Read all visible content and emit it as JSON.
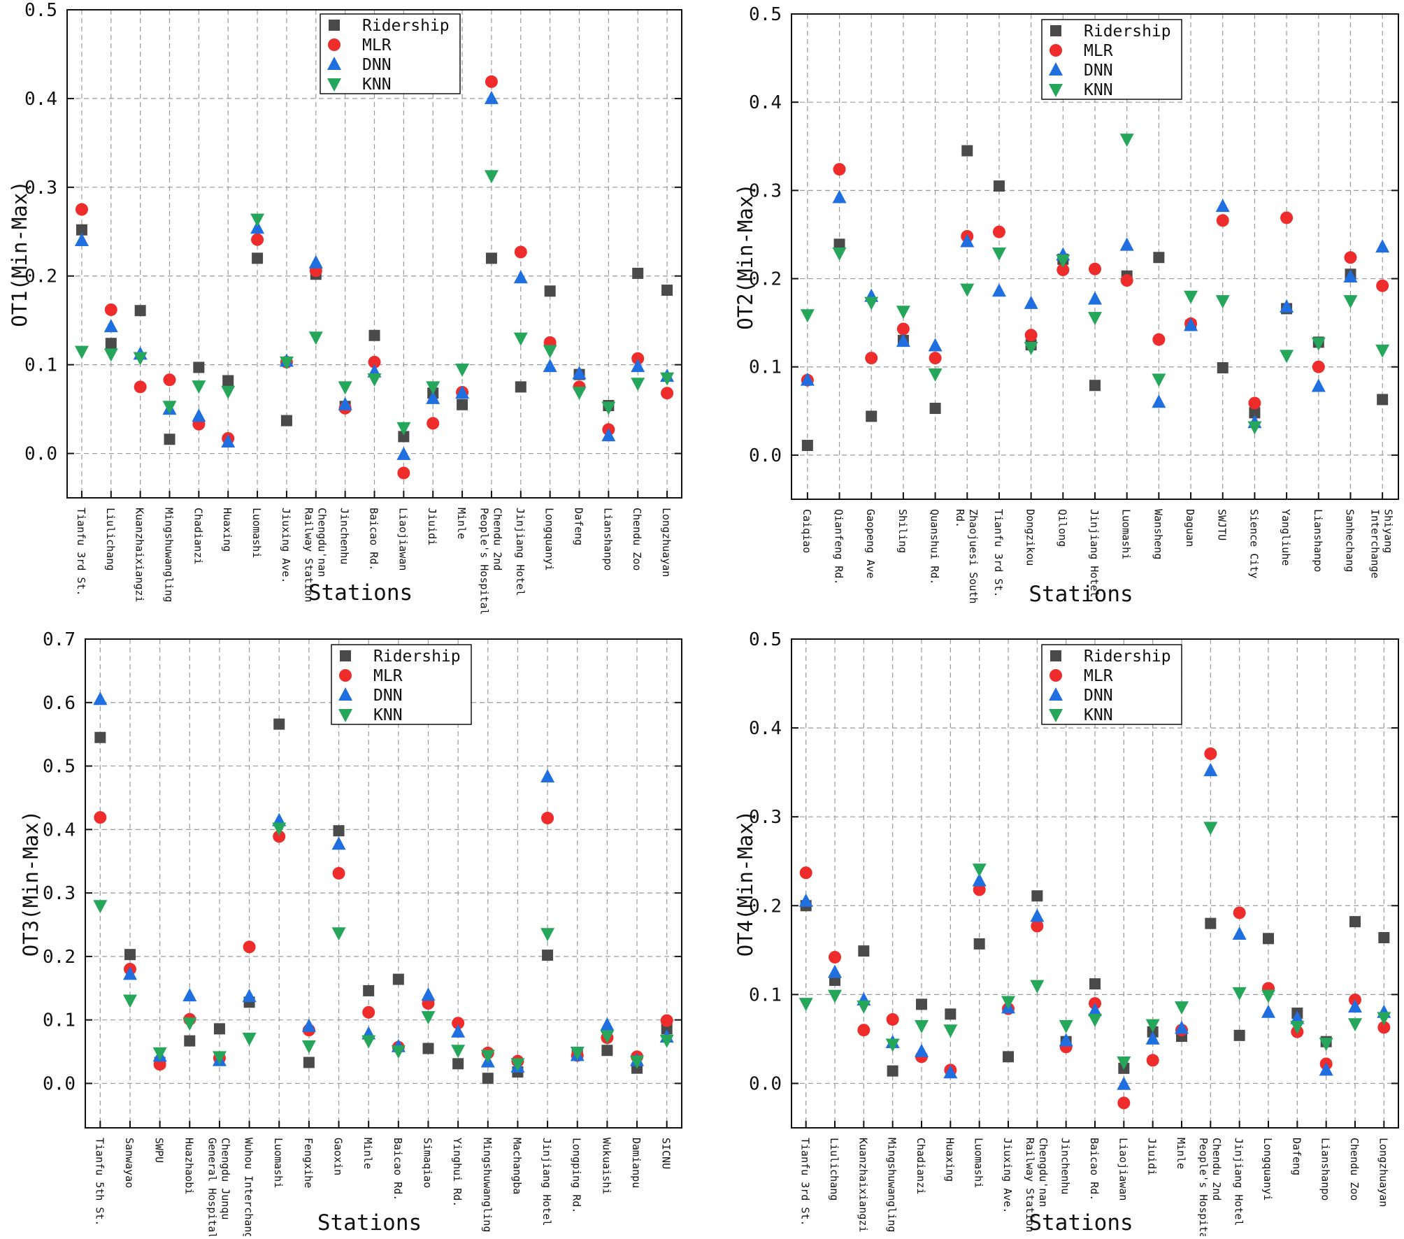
{
  "colors": {
    "ridership": "#4a4a4a",
    "mlr": "#ee2c2c",
    "dnn": "#1f6fe0",
    "knn": "#26a65b"
  },
  "chart_data": [
    {
      "type": "scatter",
      "ylabel": "OT1(Min-Max)",
      "xlabel": "Stations",
      "ylim": [
        -0.05,
        0.5
      ],
      "yticks": [
        "0.0",
        "0.1",
        "0.2",
        "0.3",
        "0.4",
        "0.5"
      ],
      "legend": [
        "Ridership",
        "MLR",
        "DNN",
        "KNN"
      ],
      "categories": [
        "Tianfu 3rd St.",
        "Liulichang",
        "Kuanzhaixiangzi",
        "Mingshuwangling",
        "Chadianzi",
        "Huaxing",
        "Luomashi",
        "Jiuxing Ave.",
        "Chengdu'nan|Railway Station",
        "Jinchenhu",
        "Baicao Rd.",
        "Liaojiawan",
        "Jiuidi",
        "Minle",
        "Chendu 2nd|People's Hospital",
        "Jinjiang Hotel",
        "Longquanyi",
        "Dafeng",
        "Lianshanpo",
        "Chendu Zoo",
        "Longzhuayan"
      ],
      "series": [
        {
          "name": "Ridership",
          "values": [
            0.252,
            0.124,
            0.161,
            0.016,
            0.097,
            0.082,
            0.22,
            0.037,
            0.202,
            0.053,
            0.133,
            0.019,
            0.068,
            0.055,
            0.22,
            0.075,
            0.183,
            0.089,
            0.054,
            0.203,
            0.184
          ]
        },
        {
          "name": "MLR",
          "values": [
            0.275,
            0.162,
            0.075,
            0.083,
            0.033,
            0.017,
            0.241,
            0.103,
            0.206,
            0.051,
            0.103,
            -0.022,
            0.034,
            0.069,
            0.419,
            0.227,
            0.125,
            0.075,
            0.027,
            0.107,
            0.068
          ]
        },
        {
          "name": "DNN",
          "values": [
            0.24,
            0.143,
            0.112,
            0.05,
            0.042,
            0.013,
            0.254,
            0.104,
            0.215,
            0.055,
            0.092,
            -0.001,
            0.062,
            0.068,
            0.4,
            0.198,
            0.098,
            0.09,
            0.02,
            0.098,
            0.087
          ]
        },
        {
          "name": "KNN",
          "values": [
            0.115,
            0.112,
            0.108,
            0.053,
            0.076,
            0.07,
            0.264,
            0.103,
            0.131,
            0.075,
            0.084,
            0.029,
            0.075,
            0.095,
            0.313,
            0.13,
            0.116,
            0.069,
            0.052,
            0.079,
            0.085
          ]
        }
      ]
    },
    {
      "type": "scatter",
      "ylabel": "OT2(Min-Max)",
      "xlabel": "Stations",
      "ylim": [
        -0.05,
        0.5
      ],
      "yticks": [
        "0.0",
        "0.1",
        "0.2",
        "0.3",
        "0.4",
        "0.5"
      ],
      "legend": [
        "Ridership",
        "MLR",
        "DNN",
        "KNN"
      ],
      "categories": [
        "Caiqiao",
        "Qianfeng Rd.",
        "Gaopeng Ave",
        "Shiling",
        "Quanshui Rd.",
        "Zhaojuesi South|Rd.",
        "Tianfu 3rd St.",
        "Dongzikou",
        "Qilong",
        "Jinjiang Hotel",
        "Luomashi",
        "Wansheng",
        "Daguan",
        "SWJTU",
        "Sience City",
        "Yangliuhe",
        "Lianshanpo",
        "Sanhechang",
        "Shiyang|Interchange"
      ],
      "series": [
        {
          "name": "Ridership",
          "values": [
            0.011,
            0.239,
            0.044,
            0.13,
            0.053,
            0.345,
            0.305,
            0.125,
            0.222,
            0.079,
            0.203,
            0.224,
            0.147,
            0.099,
            0.048,
            0.166,
            0.128,
            0.205,
            0.063
          ]
        },
        {
          "name": "MLR",
          "values": [
            0.085,
            0.324,
            0.11,
            0.143,
            0.11,
            0.248,
            0.253,
            0.136,
            0.21,
            0.211,
            0.198,
            0.131,
            0.149,
            0.266,
            0.059,
            0.269,
            0.1,
            0.224,
            0.192
          ]
        },
        {
          "name": "DNN",
          "values": [
            0.085,
            0.292,
            0.18,
            0.129,
            0.124,
            0.242,
            0.186,
            0.172,
            0.227,
            0.177,
            0.238,
            0.06,
            0.147,
            0.282,
            0.037,
            0.168,
            0.078,
            0.202,
            0.236
          ]
        },
        {
          "name": "KNN",
          "values": [
            0.159,
            0.229,
            0.173,
            0.163,
            0.092,
            0.188,
            0.229,
            0.122,
            0.221,
            0.156,
            0.358,
            0.086,
            0.18,
            0.175,
            0.032,
            0.113,
            0.127,
            0.175,
            0.119
          ]
        }
      ]
    },
    {
      "type": "scatter",
      "ylabel": "OT3(Min-Max)",
      "xlabel": "Stations",
      "ylim": [
        -0.07,
        0.7
      ],
      "yticks": [
        "0.0",
        "0.1",
        "0.2",
        "0.3",
        "0.4",
        "0.5",
        "0.6",
        "0.7"
      ],
      "legend": [
        "Ridership",
        "MLR",
        "DNN",
        "KNN"
      ],
      "categories": [
        "Tianfu 5th St.",
        "Sanwayao",
        "SWPU",
        "Huazhaobi",
        "Chengdu Junqu|General Hospital",
        "Wuhou Interchange",
        "Luomashi",
        "Fengxihe",
        "Gaoxin",
        "Minle",
        "Baicao Rd.",
        "Simaqiao",
        "Yinghui Rd.",
        "Mingshuwangling",
        "Machangba",
        "Jinjiang Hotel",
        "Longping Rd.",
        "Wukuaishi",
        "Damianpu",
        "SICNU"
      ],
      "series": [
        {
          "name": "Ridership",
          "values": [
            0.545,
            0.203,
            0.033,
            0.067,
            0.086,
            0.128,
            0.566,
            0.033,
            0.398,
            0.146,
            0.164,
            0.055,
            0.031,
            0.008,
            0.018,
            0.202,
            0.045,
            0.052,
            0.024,
            0.086
          ]
        },
        {
          "name": "MLR",
          "values": [
            0.419,
            0.18,
            0.03,
            0.101,
            0.04,
            0.215,
            0.389,
            0.084,
            0.331,
            0.112,
            0.057,
            0.126,
            0.095,
            0.048,
            0.035,
            0.418,
            0.044,
            0.072,
            0.042,
            0.099
          ]
        },
        {
          "name": "DNN",
          "values": [
            0.605,
            0.172,
            0.043,
            0.138,
            0.036,
            0.137,
            0.414,
            0.09,
            0.377,
            0.078,
            0.058,
            0.139,
            0.081,
            0.034,
            0.026,
            0.483,
            0.044,
            0.092,
            0.036,
            0.073
          ]
        },
        {
          "name": "KNN",
          "values": [
            0.28,
            0.131,
            0.048,
            0.095,
            0.042,
            0.071,
            0.402,
            0.059,
            0.237,
            0.067,
            0.051,
            0.105,
            0.052,
            0.044,
            0.031,
            0.236,
            0.049,
            0.075,
            0.035,
            0.068
          ]
        }
      ]
    },
    {
      "type": "scatter",
      "ylabel": "OT4(Min-Max)",
      "xlabel": "Stations",
      "ylim": [
        -0.05,
        0.5
      ],
      "yticks": [
        "0.0",
        "0.1",
        "0.2",
        "0.3",
        "0.4",
        "0.5"
      ],
      "legend": [
        "Ridership",
        "MLR",
        "DNN",
        "KNN"
      ],
      "categories": [
        "Tianfu 3rd St.",
        "Liulichang",
        "Kuanzhaixiangzi",
        "Mingshuwangling",
        "Chadianzi",
        "Huaxing",
        "Luomashi",
        "Jiuxing Ave.",
        "Chengdu'nan|Railway Station",
        "Jinchenhu",
        "Baicao Rd.",
        "Liaojiawan",
        "Jiuidi",
        "Minle",
        "Chendu 2nd|People's Hospital",
        "Jinjiang Hotel",
        "Longquanyi",
        "Dafeng",
        "Lianshanpo",
        "Chendu Zoo",
        "Longzhuayan"
      ],
      "series": [
        {
          "name": "Ridership",
          "values": [
            0.2,
            0.116,
            0.149,
            0.014,
            0.089,
            0.078,
            0.157,
            0.03,
            0.211,
            0.047,
            0.112,
            0.017,
            0.058,
            0.053,
            0.18,
            0.054,
            0.163,
            0.079,
            0.047,
            0.182,
            0.164
          ]
        },
        {
          "name": "MLR",
          "values": [
            0.237,
            0.142,
            0.06,
            0.072,
            0.03,
            0.015,
            0.218,
            0.084,
            0.177,
            0.041,
            0.09,
            -0.022,
            0.026,
            0.06,
            0.371,
            0.192,
            0.107,
            0.058,
            0.022,
            0.094,
            0.063
          ]
        },
        {
          "name": "DNN",
          "values": [
            0.205,
            0.125,
            0.094,
            0.046,
            0.036,
            0.012,
            0.228,
            0.085,
            0.188,
            0.048,
            0.082,
            -0.001,
            0.05,
            0.062,
            0.352,
            0.168,
            0.08,
            0.073,
            0.015,
            0.086,
            0.08
          ]
        },
        {
          "name": "KNN",
          "values": [
            0.09,
            0.099,
            0.087,
            0.044,
            0.065,
            0.06,
            0.241,
            0.092,
            0.11,
            0.065,
            0.072,
            0.024,
            0.066,
            0.086,
            0.288,
            0.102,
            0.099,
            0.064,
            0.045,
            0.067,
            0.074
          ]
        }
      ]
    }
  ]
}
